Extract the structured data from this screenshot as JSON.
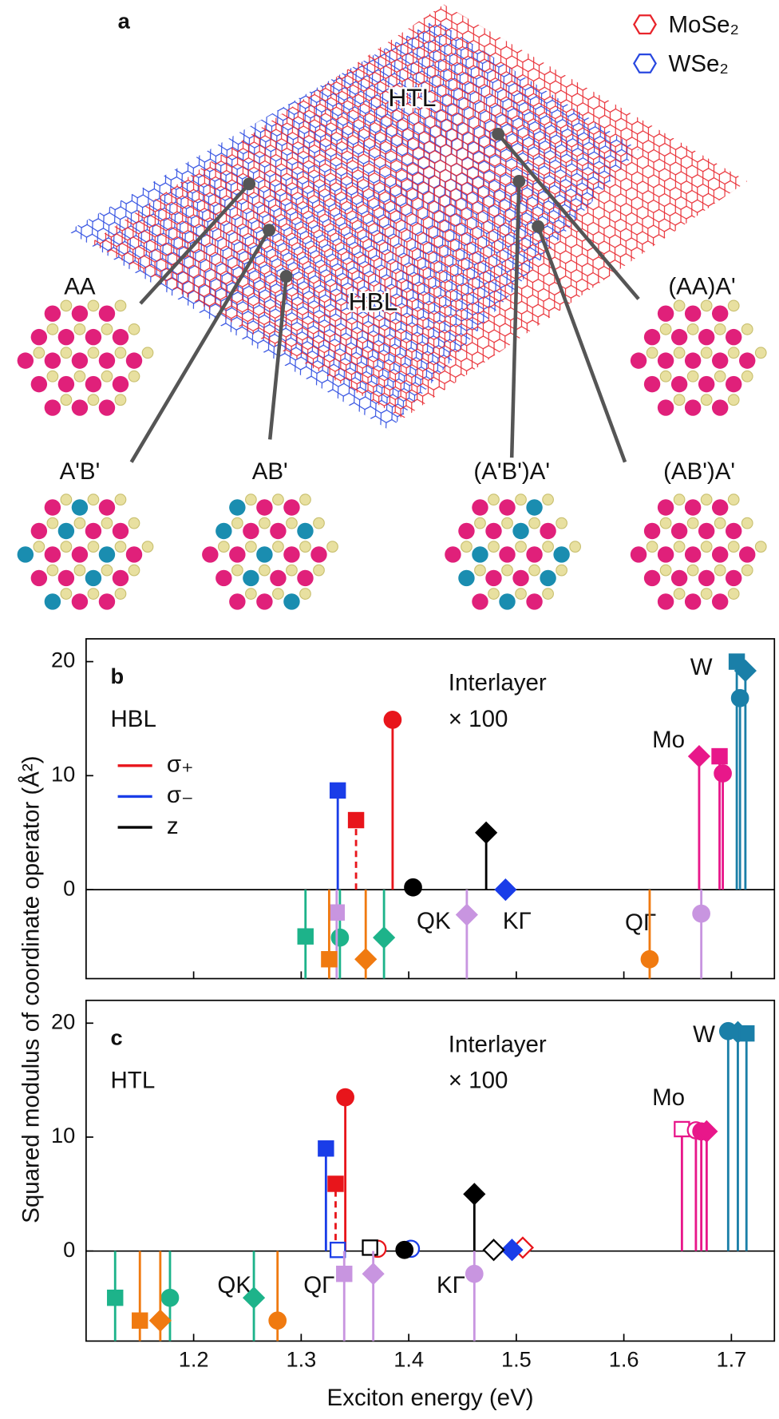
{
  "figure": {
    "panel_label": "a",
    "legend": [
      "MoSe₂",
      "WSe₂"
    ],
    "regions": [
      "HTL",
      "HBL"
    ],
    "stackings": [
      "AA",
      "(AA)A'",
      "A'B'",
      "AB'",
      "(A'B')A'",
      "(AB')A'"
    ]
  },
  "ylabel": "Squared modulus of coordinate operator (Å²)",
  "chart_data": [
    {
      "type": "stem",
      "panel_label": "b",
      "region": "HBL",
      "note": [
        "Interlayer",
        "× 100"
      ],
      "legend": true,
      "xlim": [
        1.1,
        1.74
      ],
      "ylim": [
        -7.8,
        22
      ],
      "xticks": [
        1.2,
        1.3,
        1.4,
        1.5,
        1.6,
        1.7
      ],
      "yticks": [
        0,
        10,
        20
      ],
      "series": [
        {
          "name": "σ₊",
          "color": "#e8151b",
          "x": [
            1.351,
            1.385
          ],
          "values": [
            6.1,
            14.9
          ],
          "markers": [
            "square",
            "circle"
          ],
          "filled": [
            true,
            true
          ],
          "dashed": [
            true,
            false
          ]
        },
        {
          "name": "σ₋",
          "color": "#1a3de8",
          "x": [
            1.334,
            1.49
          ],
          "values": [
            8.7,
            0
          ],
          "markers": [
            "square",
            "diamond"
          ],
          "filled": [
            true,
            true
          ],
          "dashed": [
            false,
            false
          ]
        },
        {
          "name": "z",
          "color": "#000000",
          "x": [
            1.404,
            1.472
          ],
          "values": [
            0.2,
            5
          ],
          "markers": [
            "circle",
            "diamond"
          ],
          "filled": [
            true,
            true
          ],
          "dashed": [
            false,
            false
          ]
        },
        {
          "name": "W",
          "color": "#1a7fa8",
          "x": [
            1.705,
            1.713,
            1.708
          ],
          "values": [
            20,
            19.2,
            16.8
          ],
          "markers": [
            "square",
            "diamond",
            "circle"
          ],
          "filled": [
            true,
            true,
            true
          ],
          "dashed": [
            false,
            false,
            false
          ]
        },
        {
          "name": "Mo",
          "color": "#e8178a",
          "x": [
            1.67,
            1.689,
            1.692
          ],
          "values": [
            11.7,
            11.7,
            10.2
          ],
          "markers": [
            "diamond",
            "square",
            "circle"
          ],
          "filled": [
            true,
            true,
            true
          ],
          "dashed": [
            false,
            false,
            false
          ]
        },
        {
          "name": "QK",
          "color": "#1db38a",
          "x": [
            1.304,
            1.336,
            1.377
          ],
          "values": [
            -4.1,
            -4.2,
            -4.2
          ],
          "markers": [
            "square",
            "circle",
            "diamond"
          ],
          "filled": [
            true,
            true,
            true
          ],
          "dashed": [
            false,
            false,
            false
          ]
        },
        {
          "name": "KΓ",
          "color": "#c895e0",
          "x": [
            1.333,
            1.454,
            1.672
          ],
          "values": [
            -2,
            -2.2,
            -2.1
          ],
          "markers": [
            "square",
            "diamond",
            "circle"
          ],
          "filled": [
            true,
            true,
            true
          ],
          "dashed": [
            false,
            false,
            false
          ]
        },
        {
          "name": "QΓ",
          "color": "#f07a10",
          "x": [
            1.326,
            1.36,
            1.624
          ],
          "values": [
            -6.1,
            -6.1,
            -6.1
          ],
          "markers": [
            "square",
            "diamond",
            "circle"
          ],
          "filled": [
            true,
            true,
            true
          ],
          "dashed": [
            false,
            false,
            false
          ]
        }
      ]
    },
    {
      "type": "stem",
      "panel_label": "c",
      "region": "HTL",
      "note": [
        "Interlayer",
        "× 100"
      ],
      "legend": false,
      "xlabel": "Exciton energy (eV)",
      "xlim": [
        1.1,
        1.74
      ],
      "ylim": [
        -7.9,
        22
      ],
      "xticks": [
        1.2,
        1.3,
        1.4,
        1.5,
        1.6,
        1.7
      ],
      "yticks": [
        0,
        10,
        20
      ],
      "series": [
        {
          "color": "#e8151b",
          "x": [
            1.332,
            1.341,
            1.371,
            1.506
          ],
          "values": [
            5.9,
            13.5,
            0.2,
            0.3
          ],
          "markers": [
            "square",
            "circle",
            "circle",
            "diamond"
          ],
          "filled": [
            true,
            true,
            false,
            false
          ],
          "dashed": [
            true,
            false,
            false,
            false
          ]
        },
        {
          "color": "#1a3de8",
          "x": [
            1.323,
            1.334,
            1.402,
            1.496
          ],
          "values": [
            9,
            0.1,
            0.2,
            0.1
          ],
          "markers": [
            "square",
            "square",
            "circle",
            "diamond"
          ],
          "filled": [
            true,
            false,
            false,
            true
          ],
          "dashed": [
            false,
            false,
            false,
            false
          ]
        },
        {
          "color": "#000000",
          "x": [
            1.364,
            1.396,
            1.461,
            1.479
          ],
          "values": [
            0.3,
            0.1,
            5,
            0.1
          ],
          "markers": [
            "square",
            "circle",
            "diamond",
            "diamond"
          ],
          "filled": [
            false,
            true,
            true,
            false
          ],
          "dashed": [
            false,
            false,
            false,
            false
          ]
        },
        {
          "name": "W",
          "color": "#1a7fa8",
          "x": [
            1.697,
            1.706,
            1.714
          ],
          "values": [
            19.3,
            19.2,
            19.1
          ],
          "markers": [
            "circle",
            "diamond",
            "square"
          ],
          "filled": [
            true,
            true,
            true
          ],
          "dashed": [
            false,
            false,
            false
          ]
        },
        {
          "name": "Mo",
          "color": "#e8178a",
          "x": [
            1.654,
            1.667,
            1.672,
            1.677
          ],
          "values": [
            10.7,
            10.6,
            10.5,
            10.5
          ],
          "markers": [
            "square",
            "circle",
            "circle",
            "diamond"
          ],
          "filled": [
            false,
            false,
            true,
            true
          ],
          "dashed": [
            false,
            false,
            false,
            false
          ]
        },
        {
          "name": "QK",
          "color": "#1db38a",
          "x": [
            1.127,
            1.178,
            1.256
          ],
          "values": [
            -4.1,
            -4.1,
            -4.1
          ],
          "markers": [
            "square",
            "circle",
            "diamond"
          ],
          "filled": [
            true,
            true,
            true
          ],
          "dashed": [
            false,
            false,
            false
          ]
        },
        {
          "name": "QΓ",
          "color": "#f07a10",
          "x": [
            1.15,
            1.169,
            1.278
          ],
          "values": [
            -6.1,
            -6.1,
            -6.1
          ],
          "markers": [
            "square",
            "diamond",
            "circle"
          ],
          "filled": [
            true,
            true,
            true
          ],
          "dashed": [
            false,
            false,
            false
          ]
        },
        {
          "name": "KΓ",
          "color": "#c895e0",
          "x": [
            1.34,
            1.367,
            1.461
          ],
          "values": [
            -2,
            -2,
            -2
          ],
          "markers": [
            "square",
            "diamond",
            "circle"
          ],
          "filled": [
            true,
            true,
            true
          ],
          "dashed": [
            false,
            false,
            false
          ]
        }
      ]
    }
  ]
}
